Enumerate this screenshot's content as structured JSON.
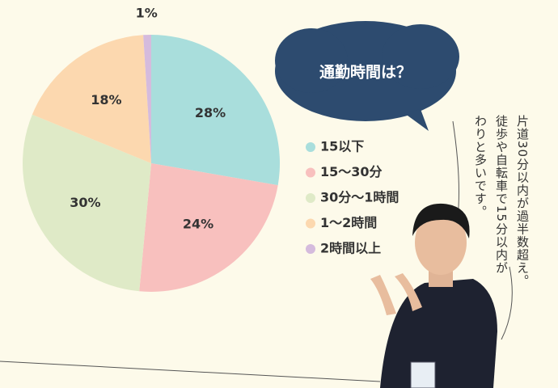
{
  "chart_data": {
    "type": "pie",
    "title": "通勤時間は？",
    "categories": [
      "15以下",
      "15～30分",
      "30分～1時間",
      "1～2時間",
      "2時間以上"
    ],
    "values": [
      28,
      24,
      30,
      18,
      1
    ],
    "value_labels": [
      "28%",
      "24%",
      "30%",
      "18%",
      "1%"
    ],
    "colors": [
      "#a9dedc",
      "#f8c0be",
      "#dfeac7",
      "#fcd8af",
      "#d5bbdd"
    ],
    "annotation": [
      "片道30分以内が過半数超え。",
      "徒歩や自転車で15分以内が",
      "わりと多いです。"
    ]
  }
}
